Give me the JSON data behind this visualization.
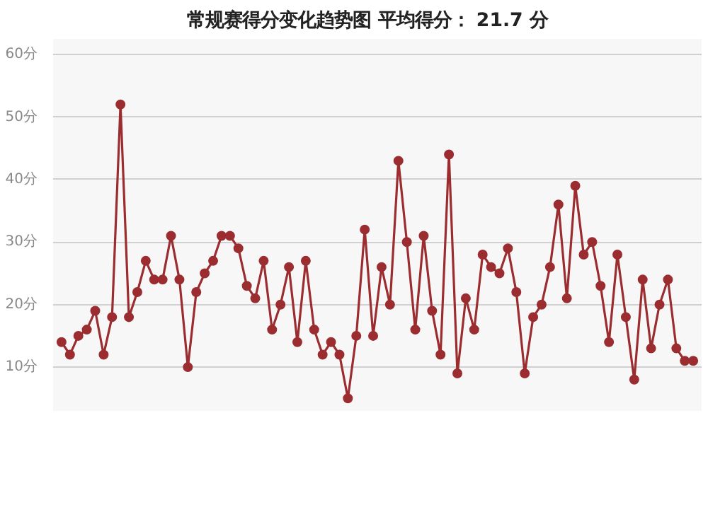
{
  "chart_data": {
    "type": "line",
    "title": "常规赛得分变化趋势图    平均得分： 21.7 分",
    "categories": [
      null,
      null,
      null,
      null,
      null,
      null,
      null,
      null,
      null,
      null,
      null,
      null,
      null,
      null,
      null,
      null,
      null,
      null,
      null,
      null,
      null,
      null,
      null,
      null,
      null,
      null,
      null,
      null,
      null,
      null,
      null,
      null,
      null,
      null,
      null,
      null,
      null,
      null,
      null,
      null,
      null,
      null,
      null,
      null,
      null,
      null,
      null,
      null,
      null,
      null,
      null,
      null,
      null,
      null,
      null,
      null,
      null,
      null,
      null,
      null,
      null,
      null,
      null,
      null,
      null,
      null,
      null,
      null,
      null,
      null,
      null,
      null,
      null,
      null,
      null,
      null
    ],
    "series": [
      {
        "color": "#9b2d30",
        "values": [
          14,
          12,
          15,
          16,
          19,
          12,
          18,
          52,
          18,
          22,
          27,
          24,
          24,
          31,
          24,
          10,
          22,
          25,
          27,
          31,
          31,
          29,
          23,
          21,
          27,
          16,
          20,
          26,
          14,
          27,
          16,
          12,
          14,
          12,
          5,
          15,
          32,
          15,
          26,
          20,
          43,
          30,
          16,
          31,
          19,
          12,
          44,
          9,
          21,
          16,
          28,
          26,
          25,
          29,
          22,
          9,
          18,
          20,
          26,
          36,
          21,
          39,
          28,
          30,
          23,
          14,
          28,
          18,
          8,
          24,
          13,
          20,
          24,
          13,
          11,
          11
        ]
      }
    ],
    "ylim": [
      3,
      62.5
    ],
    "yticks": [
      {
        "value": 10,
        "label": "10分"
      },
      {
        "value": 20,
        "label": "20分"
      },
      {
        "value": 30,
        "label": "30分"
      },
      {
        "value": 40,
        "label": "40分"
      },
      {
        "value": 50,
        "label": "50分"
      },
      {
        "value": 60,
        "label": "60分"
      }
    ],
    "tick_labels": "y",
    "grid": "y",
    "marker": "circle",
    "line_style": "solid"
  }
}
